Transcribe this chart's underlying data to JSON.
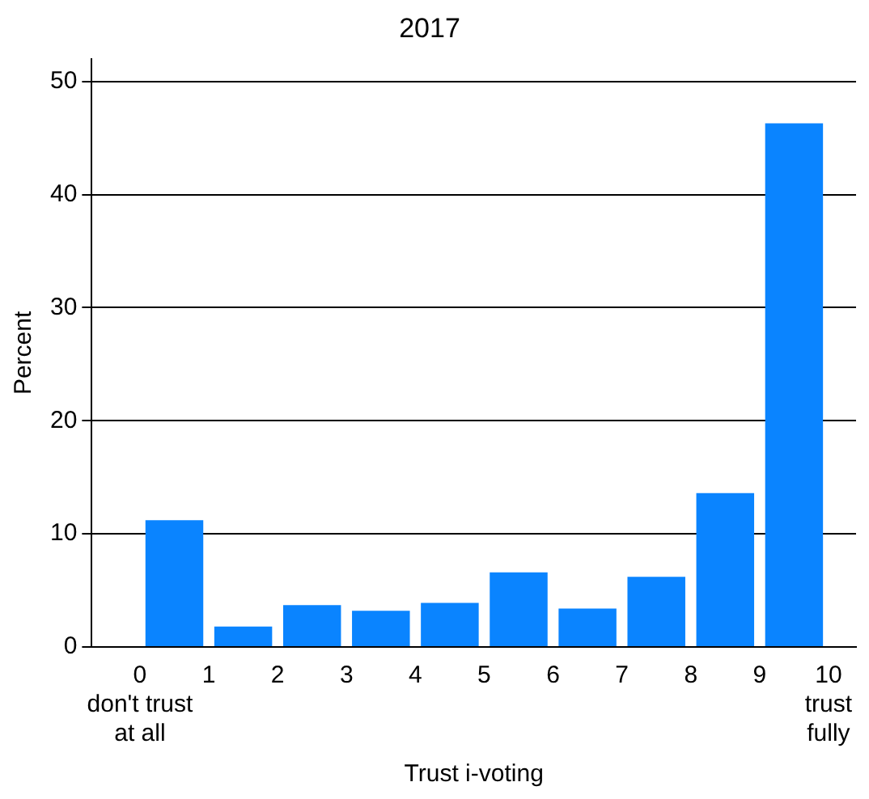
{
  "chart_data": {
    "type": "histogram",
    "title": "2017",
    "xlabel": "Trust i-voting",
    "ylabel": "Percent",
    "bins": [
      0,
      1,
      2,
      3,
      4,
      5,
      6,
      7,
      8,
      9,
      10
    ],
    "values": [
      11.2,
      1.8,
      3.7,
      3.2,
      3.9,
      6.6,
      3.4,
      6.2,
      13.6,
      46.3
    ],
    "color": "#0a84ff",
    "xlim": [
      -0.7,
      10.4
    ],
    "xticks": [
      {
        "value": 0,
        "label": "0\ndon't trust\nat all"
      },
      1,
      2,
      3,
      4,
      5,
      6,
      7,
      8,
      9,
      {
        "value": 10,
        "label": "10\ntrust\nfully"
      }
    ],
    "ylim": [
      0,
      52
    ],
    "yticks": [
      0,
      10,
      20,
      30,
      40,
      50
    ],
    "grid": "y"
  }
}
